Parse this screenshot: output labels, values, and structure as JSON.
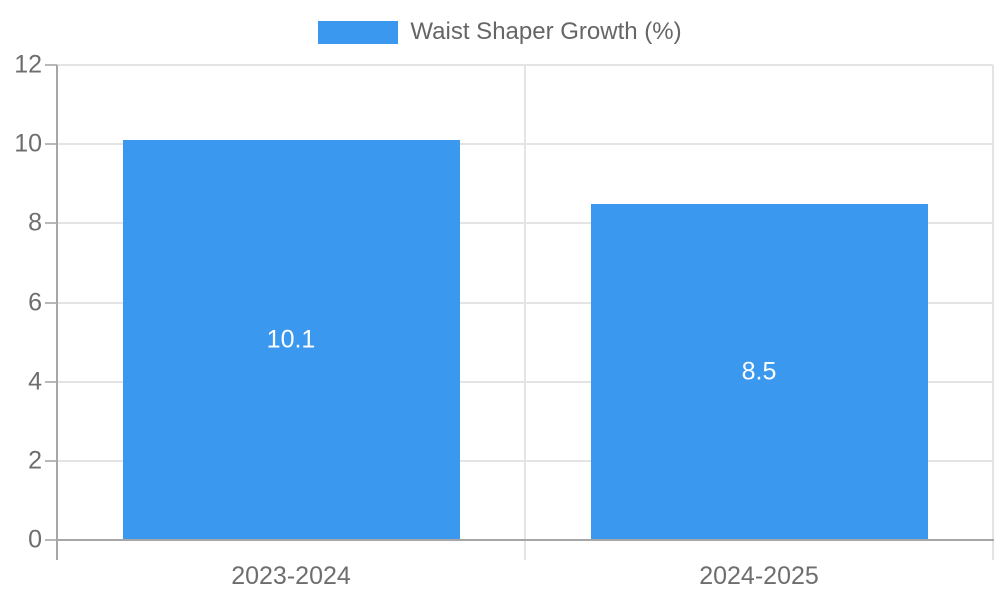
{
  "chart_data": {
    "type": "bar",
    "title": "",
    "categories": [
      "2023-2024",
      "2024-2025"
    ],
    "series": [
      {
        "name": "Waist Shaper Growth (%)",
        "values": [
          10.1,
          8.5
        ],
        "color": "#3a99ee"
      }
    ],
    "value_labels": [
      [
        "10.1",
        "8.5"
      ]
    ],
    "xlabel": "",
    "ylabel": "",
    "ylim": [
      0,
      12
    ],
    "yticks": [
      0,
      2,
      4,
      6,
      8,
      10,
      12
    ],
    "ytick_labels": [
      "0",
      "2",
      "4",
      "6",
      "8",
      "10",
      "12"
    ],
    "grid": true,
    "legend_position": "top-center",
    "bar_label_position": "inside-center"
  },
  "colors": {
    "bar": "#3a99ee",
    "bar_label": "#ffffff",
    "axis": "#a6a6a6",
    "grid": "#e4e4e4",
    "tick": "#b8b8b8",
    "axis_text": "#6e6e6e",
    "legend_text": "#666666",
    "background": "#ffffff"
  }
}
